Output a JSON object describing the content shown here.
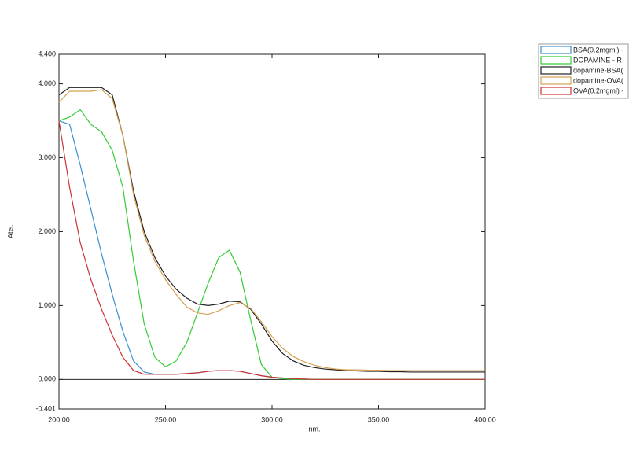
{
  "chart_data": {
    "type": "line",
    "x_label": "nm.",
    "y_label": "Abs.",
    "x": [
      200,
      205,
      210,
      215,
      220,
      225,
      230,
      235,
      240,
      245,
      250,
      255,
      260,
      265,
      270,
      275,
      280,
      285,
      290,
      295,
      300,
      305,
      310,
      315,
      320,
      325,
      330,
      335,
      340,
      345,
      350,
      355,
      360,
      365,
      370,
      375,
      380,
      385,
      390,
      395,
      400
    ],
    "xlim": [
      200,
      400
    ],
    "ylim": [
      -0.401,
      4.4
    ],
    "xticks": [
      {
        "value": 200,
        "label": "200.00"
      },
      {
        "value": 250,
        "label": "250.00"
      },
      {
        "value": 300,
        "label": "300.00"
      },
      {
        "value": 350,
        "label": "350.00"
      },
      {
        "value": 400,
        "label": "400.00"
      }
    ],
    "yticks": [
      -0.401,
      {
        "value": 0,
        "label": "0.000"
      },
      {
        "value": 1,
        "label": "1.000"
      },
      {
        "value": 2,
        "label": "2.000"
      },
      {
        "value": 3,
        "label": "3.000"
      },
      {
        "value": 4,
        "label": "4.000"
      },
      {
        "value": 4.4,
        "label": "4.400"
      }
    ],
    "series": [
      {
        "name": "BSA(0.2mgml) -",
        "color": "#3a8fd0",
        "values": [
          3.5,
          3.45,
          2.9,
          2.3,
          1.7,
          1.15,
          0.65,
          0.25,
          0.1,
          0.07,
          0.07,
          0.07,
          0.08,
          0.09,
          0.11,
          0.12,
          0.12,
          0.11,
          0.08,
          0.05,
          0.03,
          0.02,
          0.01,
          0.005,
          0,
          0,
          0,
          0,
          0,
          0,
          0,
          0,
          0,
          0,
          0,
          0,
          0,
          0,
          0,
          0,
          0
        ]
      },
      {
        "name": "DOPAMINE - R",
        "color": "#33cc33",
        "values": [
          3.5,
          3.55,
          3.65,
          3.45,
          3.35,
          3.1,
          2.6,
          1.6,
          0.75,
          0.3,
          0.17,
          0.25,
          0.5,
          0.9,
          1.3,
          1.65,
          1.75,
          1.45,
          0.8,
          0.2,
          0.03,
          0.01,
          0,
          0,
          0,
          0,
          0,
          0,
          0,
          0,
          0,
          0,
          0,
          0,
          0,
          0,
          0,
          0,
          0,
          0,
          0
        ]
      },
      {
        "name": "dopamine-BSA(",
        "color": "#222222",
        "values": [
          3.85,
          3.95,
          3.95,
          3.95,
          3.95,
          3.85,
          3.3,
          2.55,
          2.0,
          1.65,
          1.4,
          1.22,
          1.1,
          1.02,
          1.0,
          1.02,
          1.06,
          1.05,
          0.95,
          0.75,
          0.52,
          0.35,
          0.25,
          0.19,
          0.16,
          0.14,
          0.13,
          0.12,
          0.115,
          0.11,
          0.11,
          0.105,
          0.105,
          0.1,
          0.1,
          0.1,
          0.1,
          0.1,
          0.1,
          0.1,
          0.1
        ]
      },
      {
        "name": "dopamine-OVA(",
        "color": "#d4a050",
        "values": [
          3.75,
          3.9,
          3.9,
          3.9,
          3.92,
          3.8,
          3.3,
          2.5,
          1.95,
          1.6,
          1.35,
          1.15,
          0.98,
          0.9,
          0.88,
          0.93,
          1.0,
          1.04,
          0.96,
          0.78,
          0.58,
          0.42,
          0.31,
          0.24,
          0.19,
          0.16,
          0.14,
          0.13,
          0.13,
          0.125,
          0.125,
          0.12,
          0.12,
          0.12,
          0.12,
          0.12,
          0.12,
          0.12,
          0.12,
          0.12,
          0.12
        ]
      },
      {
        "name": "OVA(0.2mgml) -",
        "color": "#cc3333",
        "values": [
          3.5,
          2.6,
          1.85,
          1.35,
          0.95,
          0.6,
          0.3,
          0.12,
          0.07,
          0.07,
          0.07,
          0.07,
          0.08,
          0.09,
          0.11,
          0.12,
          0.12,
          0.11,
          0.08,
          0.05,
          0.03,
          0.02,
          0.01,
          0.005,
          0,
          0,
          0,
          0,
          0,
          0,
          0,
          0,
          0,
          0,
          0,
          0,
          0,
          0,
          0,
          0,
          0
        ]
      }
    ],
    "grid": false,
    "legend": "top-right"
  }
}
